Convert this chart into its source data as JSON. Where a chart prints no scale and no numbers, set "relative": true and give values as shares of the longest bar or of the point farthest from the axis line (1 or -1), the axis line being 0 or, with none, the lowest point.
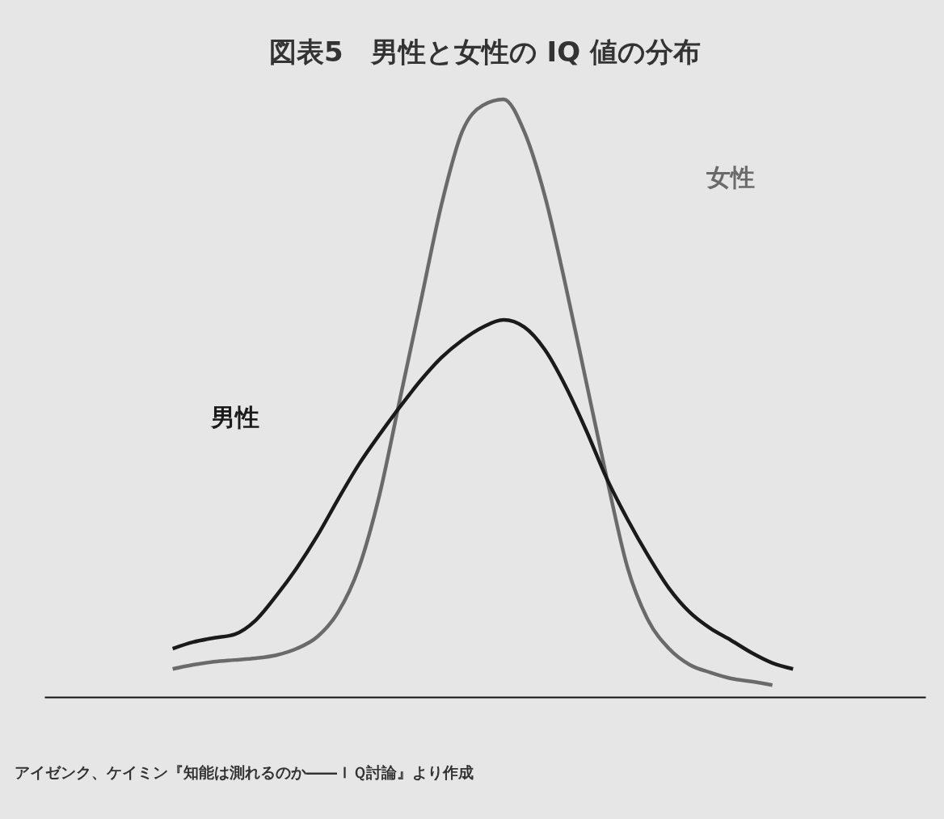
{
  "chart_data": {
    "type": "line",
    "title": "図表5　男性と女性の IQ 値の分布",
    "relative": true,
    "categories": [
      null,
      null,
      null,
      null,
      null,
      null,
      null,
      null,
      null,
      null,
      null,
      null,
      null,
      null,
      null,
      null,
      null,
      null,
      null,
      null,
      null,
      null,
      null,
      null,
      null,
      null,
      null,
      null,
      null,
      null,
      null
    ],
    "series": [
      {
        "name": "女性",
        "color": "#6a6a6a",
        "values": [
          0.047,
          0.054,
          0.059,
          0.062,
          0.065,
          0.07,
          0.081,
          0.101,
          0.142,
          0.216,
          0.338,
          0.5,
          0.662,
          0.824,
          0.946,
          0.99,
          1.0,
          0.946,
          0.838,
          0.689,
          0.527,
          0.365,
          0.216,
          0.128,
          0.081,
          0.054,
          0.041,
          0.031,
          0.026,
          0.02,
          null
        ]
      },
      {
        "name": "男性",
        "color": "#1a1a1a",
        "values": [
          0.081,
          0.092,
          0.099,
          0.105,
          0.128,
          0.169,
          0.216,
          0.27,
          0.331,
          0.389,
          0.439,
          0.486,
          0.53,
          0.568,
          0.597,
          0.619,
          0.631,
          0.619,
          0.581,
          0.52,
          0.446,
          0.365,
          0.297,
          0.236,
          0.182,
          0.142,
          0.115,
          0.095,
          0.074,
          0.057,
          0.047
        ]
      }
    ],
    "annotations": [
      "アイゼンク、ケイミン『知能は測れるのか――ＩＱ討論』より作成"
    ]
  }
}
